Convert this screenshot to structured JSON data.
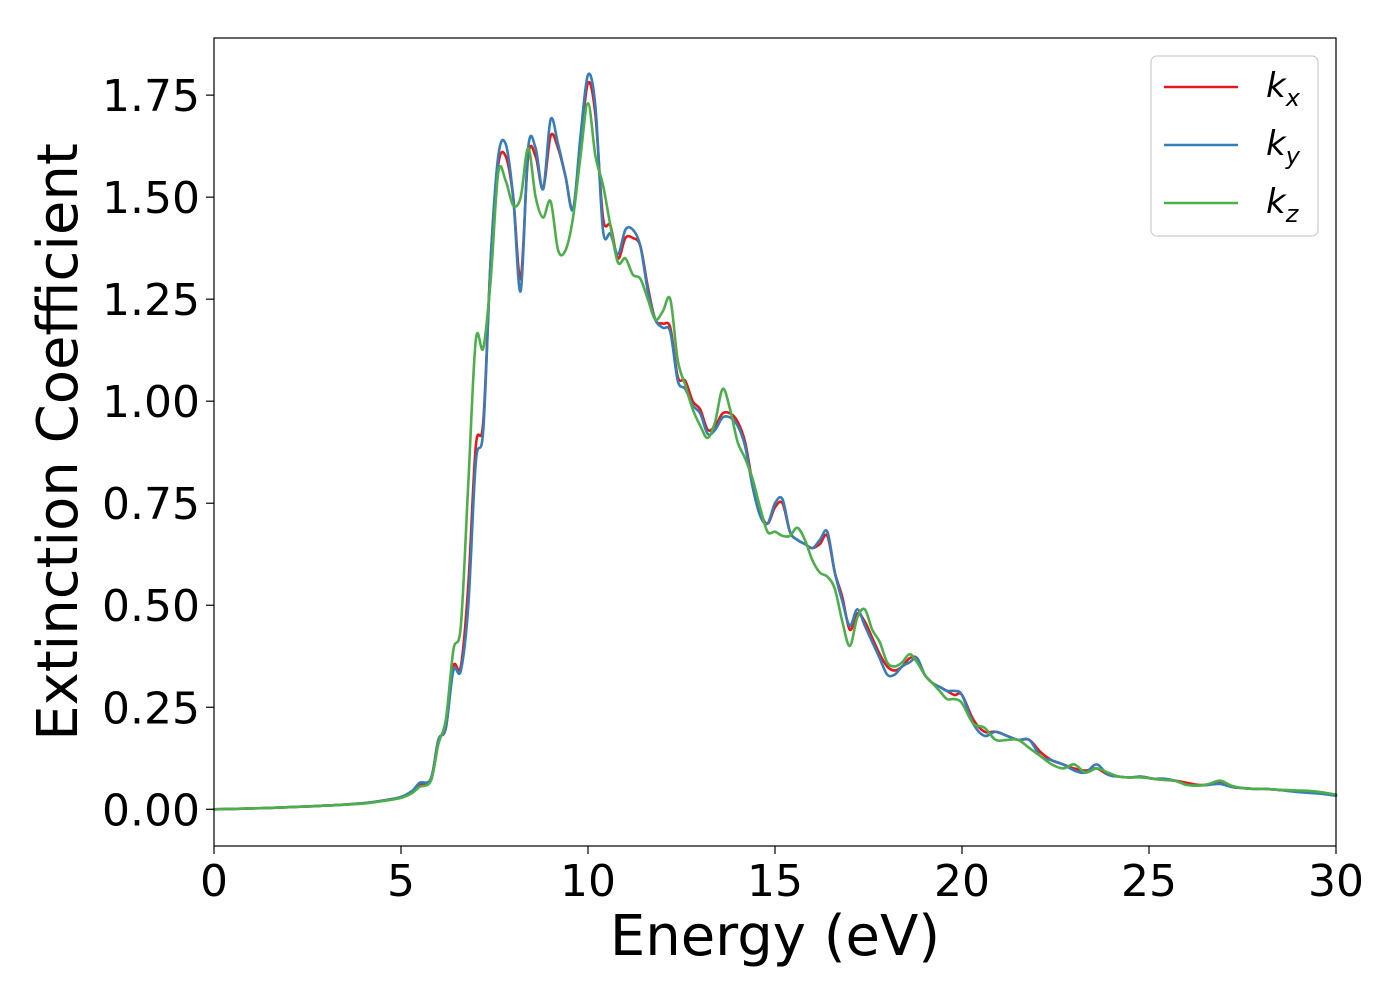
{
  "chart_data": {
    "type": "line",
    "title": "",
    "xlabel": "Energy (eV)",
    "ylabel": "Extinction Coefficient",
    "xlim": [
      0,
      30
    ],
    "ylim": [
      -0.09,
      1.89
    ],
    "xticks": [
      0,
      5,
      10,
      15,
      20,
      25,
      30
    ],
    "xtick_labels": [
      "0",
      "5",
      "10",
      "15",
      "20",
      "25",
      "30"
    ],
    "yticks": [
      0.0,
      0.25,
      0.5,
      0.75,
      1.0,
      1.25,
      1.5,
      1.75
    ],
    "ytick_labels": [
      "0.00",
      "0.25",
      "0.50",
      "0.75",
      "1.00",
      "1.25",
      "1.50",
      "1.75"
    ],
    "grid": false,
    "legend_position": "top-right",
    "series": [
      {
        "name": "k_x",
        "base": "k",
        "sub": "x",
        "color": "#e41a1c",
        "x": [
          0,
          1,
          2,
          3,
          4,
          4.5,
          5,
          5.3,
          5.5,
          5.8,
          6.0,
          6.2,
          6.4,
          6.6,
          6.8,
          7.0,
          7.2,
          7.4,
          7.6,
          7.8,
          8.0,
          8.2,
          8.4,
          8.6,
          8.8,
          9.0,
          9.2,
          9.4,
          9.6,
          9.8,
          10.0,
          10.2,
          10.4,
          10.6,
          10.8,
          11.0,
          11.2,
          11.4,
          11.6,
          11.8,
          12.0,
          12.2,
          12.4,
          12.6,
          12.8,
          13.0,
          13.2,
          13.4,
          13.6,
          13.8,
          14.0,
          14.2,
          14.4,
          14.6,
          14.8,
          15.0,
          15.2,
          15.4,
          15.6,
          15.8,
          16.0,
          16.2,
          16.4,
          16.6,
          16.8,
          17.0,
          17.2,
          17.4,
          17.6,
          17.8,
          18.0,
          18.2,
          18.4,
          18.6,
          18.8,
          19.0,
          19.2,
          19.4,
          19.6,
          19.8,
          20.0,
          20.3,
          20.6,
          20.9,
          21.2,
          21.5,
          21.8,
          22.1,
          22.4,
          22.7,
          23.0,
          23.3,
          23.6,
          23.9,
          24.2,
          24.5,
          24.8,
          25.1,
          25.4,
          25.7,
          26.0,
          26.3,
          26.6,
          26.9,
          27.2,
          27.5,
          27.8,
          28.1,
          28.4,
          28.7,
          29.0,
          29.3,
          29.6,
          30.0
        ],
        "y": [
          0.0,
          0.002,
          0.005,
          0.009,
          0.015,
          0.021,
          0.03,
          0.045,
          0.06,
          0.075,
          0.17,
          0.2,
          0.35,
          0.35,
          0.55,
          0.89,
          0.95,
          1.35,
          1.58,
          1.6,
          1.5,
          1.3,
          1.6,
          1.6,
          1.52,
          1.65,
          1.62,
          1.55,
          1.47,
          1.63,
          1.78,
          1.7,
          1.45,
          1.43,
          1.35,
          1.4,
          1.4,
          1.38,
          1.28,
          1.2,
          1.19,
          1.18,
          1.06,
          1.05,
          1.0,
          0.98,
          0.93,
          0.94,
          0.97,
          0.97,
          0.95,
          0.9,
          0.8,
          0.73,
          0.7,
          0.74,
          0.75,
          0.68,
          0.66,
          0.65,
          0.64,
          0.65,
          0.67,
          0.58,
          0.52,
          0.44,
          0.48,
          0.46,
          0.42,
          0.38,
          0.35,
          0.34,
          0.35,
          0.37,
          0.37,
          0.33,
          0.31,
          0.3,
          0.29,
          0.28,
          0.28,
          0.22,
          0.19,
          0.19,
          0.18,
          0.17,
          0.17,
          0.14,
          0.12,
          0.11,
          0.1,
          0.095,
          0.1,
          0.085,
          0.08,
          0.078,
          0.08,
          0.075,
          0.072,
          0.07,
          0.065,
          0.06,
          0.06,
          0.065,
          0.055,
          0.052,
          0.05,
          0.05,
          0.048,
          0.046,
          0.044,
          0.043,
          0.04,
          0.035
        ]
      },
      {
        "name": "k_y",
        "base": "k",
        "sub": "y",
        "color": "#377eb8",
        "x": [
          0,
          1,
          2,
          3,
          4,
          4.5,
          5,
          5.3,
          5.5,
          5.8,
          6.0,
          6.2,
          6.4,
          6.6,
          6.8,
          7.0,
          7.2,
          7.4,
          7.6,
          7.8,
          8.0,
          8.2,
          8.4,
          8.6,
          8.8,
          9.0,
          9.2,
          9.4,
          9.6,
          9.8,
          10.0,
          10.2,
          10.4,
          10.6,
          10.8,
          11.0,
          11.2,
          11.4,
          11.6,
          11.8,
          12.0,
          12.2,
          12.4,
          12.6,
          12.8,
          13.0,
          13.2,
          13.4,
          13.6,
          13.8,
          14.0,
          14.2,
          14.4,
          14.6,
          14.8,
          15.0,
          15.2,
          15.4,
          15.6,
          15.8,
          16.0,
          16.2,
          16.4,
          16.6,
          16.8,
          17.0,
          17.2,
          17.4,
          17.6,
          17.8,
          18.0,
          18.2,
          18.4,
          18.6,
          18.8,
          19.0,
          19.2,
          19.4,
          19.6,
          19.8,
          20.0,
          20.3,
          20.6,
          20.9,
          21.2,
          21.5,
          21.8,
          22.1,
          22.4,
          22.7,
          23.0,
          23.3,
          23.6,
          23.9,
          24.2,
          24.5,
          24.8,
          25.1,
          25.4,
          25.7,
          26.0,
          26.3,
          26.6,
          26.9,
          27.2,
          27.5,
          27.8,
          28.1,
          28.4,
          28.7,
          29.0,
          29.3,
          29.6,
          30.0
        ],
        "y": [
          0.0,
          0.002,
          0.005,
          0.009,
          0.015,
          0.021,
          0.03,
          0.045,
          0.065,
          0.075,
          0.17,
          0.2,
          0.34,
          0.34,
          0.5,
          0.85,
          0.93,
          1.35,
          1.6,
          1.63,
          1.5,
          1.27,
          1.62,
          1.62,
          1.52,
          1.69,
          1.63,
          1.55,
          1.47,
          1.65,
          1.8,
          1.72,
          1.42,
          1.41,
          1.36,
          1.42,
          1.42,
          1.38,
          1.27,
          1.2,
          1.18,
          1.17,
          1.05,
          1.03,
          0.99,
          0.97,
          0.92,
          0.93,
          0.96,
          0.96,
          0.94,
          0.89,
          0.79,
          0.72,
          0.7,
          0.75,
          0.76,
          0.68,
          0.66,
          0.65,
          0.64,
          0.66,
          0.68,
          0.58,
          0.51,
          0.45,
          0.49,
          0.45,
          0.41,
          0.37,
          0.33,
          0.33,
          0.35,
          0.36,
          0.37,
          0.33,
          0.31,
          0.3,
          0.29,
          0.29,
          0.28,
          0.21,
          0.18,
          0.19,
          0.18,
          0.17,
          0.17,
          0.13,
          0.12,
          0.11,
          0.095,
          0.09,
          0.11,
          0.085,
          0.08,
          0.078,
          0.08,
          0.075,
          0.075,
          0.07,
          0.06,
          0.058,
          0.06,
          0.062,
          0.055,
          0.052,
          0.05,
          0.05,
          0.048,
          0.045,
          0.042,
          0.04,
          0.038,
          0.033
        ]
      },
      {
        "name": "k_z",
        "base": "k",
        "sub": "z",
        "color": "#4daf4a",
        "x": [
          0,
          1,
          2,
          3,
          4,
          4.5,
          5,
          5.3,
          5.5,
          5.8,
          6.0,
          6.2,
          6.4,
          6.6,
          6.8,
          7.0,
          7.2,
          7.4,
          7.6,
          7.8,
          8.0,
          8.2,
          8.4,
          8.6,
          8.8,
          9.0,
          9.2,
          9.4,
          9.6,
          9.8,
          10.0,
          10.2,
          10.4,
          10.6,
          10.8,
          11.0,
          11.2,
          11.4,
          11.6,
          11.8,
          12.0,
          12.2,
          12.4,
          12.6,
          12.8,
          13.0,
          13.2,
          13.4,
          13.6,
          13.8,
          14.0,
          14.2,
          14.4,
          14.6,
          14.8,
          15.0,
          15.2,
          15.4,
          15.6,
          15.8,
          16.0,
          16.2,
          16.4,
          16.6,
          16.8,
          17.0,
          17.2,
          17.4,
          17.6,
          17.8,
          18.0,
          18.2,
          18.4,
          18.6,
          18.8,
          19.0,
          19.2,
          19.4,
          19.6,
          19.8,
          20.0,
          20.3,
          20.6,
          20.9,
          21.2,
          21.5,
          21.8,
          22.1,
          22.4,
          22.7,
          23.0,
          23.3,
          23.6,
          23.9,
          24.2,
          24.5,
          24.8,
          25.1,
          25.4,
          25.7,
          26.0,
          26.3,
          26.6,
          26.9,
          27.2,
          27.5,
          27.8,
          28.1,
          28.4,
          28.7,
          29.0,
          29.3,
          29.6,
          30.0
        ],
        "y": [
          0.0,
          0.002,
          0.005,
          0.009,
          0.014,
          0.02,
          0.028,
          0.04,
          0.055,
          0.07,
          0.16,
          0.22,
          0.39,
          0.45,
          0.8,
          1.15,
          1.13,
          1.3,
          1.56,
          1.54,
          1.48,
          1.5,
          1.62,
          1.5,
          1.45,
          1.49,
          1.37,
          1.37,
          1.45,
          1.6,
          1.73,
          1.6,
          1.53,
          1.43,
          1.34,
          1.35,
          1.31,
          1.3,
          1.25,
          1.2,
          1.22,
          1.25,
          1.1,
          1.04,
          0.98,
          0.94,
          0.91,
          0.95,
          1.03,
          0.98,
          0.9,
          0.86,
          0.81,
          0.74,
          0.68,
          0.68,
          0.67,
          0.67,
          0.69,
          0.66,
          0.61,
          0.58,
          0.57,
          0.54,
          0.46,
          0.4,
          0.47,
          0.49,
          0.44,
          0.41,
          0.36,
          0.35,
          0.36,
          0.38,
          0.36,
          0.33,
          0.31,
          0.29,
          0.27,
          0.27,
          0.26,
          0.21,
          0.2,
          0.17,
          0.17,
          0.17,
          0.15,
          0.13,
          0.11,
          0.1,
          0.11,
          0.09,
          0.1,
          0.09,
          0.08,
          0.078,
          0.078,
          0.075,
          0.072,
          0.07,
          0.06,
          0.058,
          0.062,
          0.07,
          0.058,
          0.052,
          0.05,
          0.05,
          0.048,
          0.047,
          0.046,
          0.045,
          0.042,
          0.036
        ]
      }
    ]
  }
}
